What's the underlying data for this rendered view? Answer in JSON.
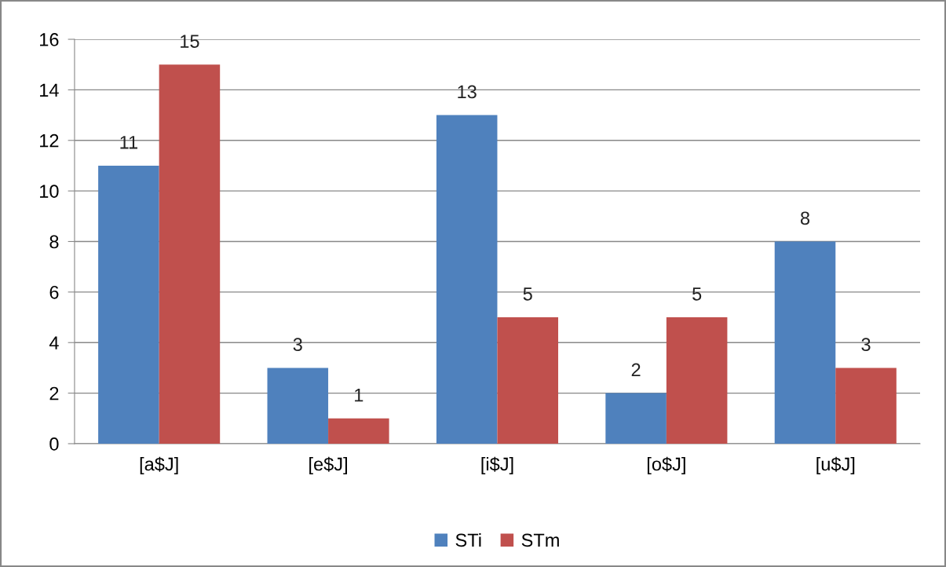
{
  "chart_data": {
    "type": "bar",
    "categories": [
      "[a$J]",
      "[e$J]",
      "[i$J]",
      "[o$J]",
      "[u$J]"
    ],
    "series": [
      {
        "name": "STi",
        "color": "#4f81bd",
        "values": [
          11,
          3,
          13,
          2,
          8
        ]
      },
      {
        "name": "STm",
        "color": "#c0504d",
        "values": [
          15,
          1,
          5,
          5,
          3
        ]
      }
    ],
    "ylim": [
      0,
      16
    ],
    "yticks": [
      0,
      2,
      4,
      6,
      8,
      10,
      12,
      14,
      16
    ],
    "grid": "y",
    "legend": "bottom",
    "data_labels": true
  }
}
